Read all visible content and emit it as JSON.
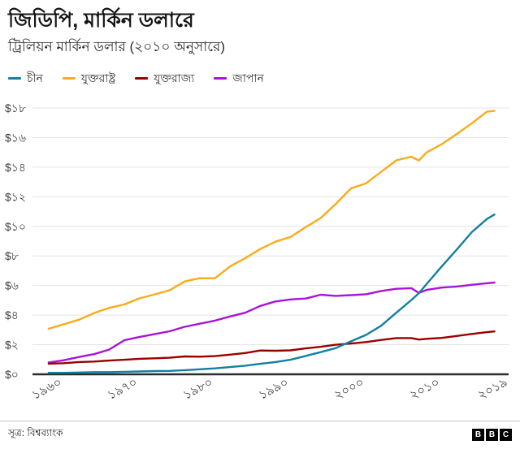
{
  "header": {
    "title": "জিডিপি, মার্কিন ডলারে",
    "subtitle": "ট্রিলিয়ন মার্কিন ডলার (২০১০ অনুসারে)"
  },
  "legend": {
    "items": [
      {
        "key": "china",
        "label": "চীন",
        "color": "#1380A1"
      },
      {
        "key": "usa",
        "label": "যুক্তরাষ্ট্র",
        "color": "#FAAB18"
      },
      {
        "key": "uk",
        "label": "যুক্তরাজ্য",
        "color": "#990000"
      },
      {
        "key": "japan",
        "label": "জাপান",
        "color": "#A913DB"
      }
    ]
  },
  "footer": {
    "source": "সূত্র: বিশ্বব্যাংক",
    "logo_letters": [
      "B",
      "B",
      "C"
    ]
  },
  "chart_data": {
    "type": "line",
    "title": "জিডিপি, মার্কিন ডলারে",
    "subtitle": "ট্রিলিয়ন মার্কিন ডলার (২০১০ অনুসারে)",
    "xlabel": "",
    "ylabel": "",
    "grid": true,
    "legend_position": "top",
    "xlim": [
      1958.5,
      2019.8
    ],
    "ylim": [
      0,
      18
    ],
    "x": [
      1960,
      1962,
      1964,
      1966,
      1968,
      1970,
      1972,
      1974,
      1976,
      1978,
      1980,
      1982,
      1984,
      1986,
      1988,
      1990,
      1992,
      1994,
      1996,
      1998,
      2000,
      2002,
      2004,
      2006,
      2008,
      2009,
      2010,
      2012,
      2014,
      2016,
      2018,
      2019
    ],
    "series": [
      {
        "key": "china",
        "name": "চীন",
        "color": "#1380A1",
        "values": [
          0.1,
          0.1,
          0.12,
          0.15,
          0.15,
          0.17,
          0.19,
          0.22,
          0.23,
          0.28,
          0.34,
          0.4,
          0.49,
          0.58,
          0.71,
          0.83,
          0.98,
          1.24,
          1.5,
          1.77,
          2.23,
          2.66,
          3.28,
          4.16,
          5.02,
          5.49,
          6.09,
          7.28,
          8.43,
          9.61,
          10.5,
          10.8
        ]
      },
      {
        "key": "usa",
        "name": "যুক্তরাষ্ট্র",
        "color": "#FAAB18",
        "values": [
          3.08,
          3.38,
          3.69,
          4.14,
          4.49,
          4.72,
          5.13,
          5.4,
          5.68,
          6.27,
          6.5,
          6.49,
          7.29,
          7.84,
          8.47,
          8.96,
          9.28,
          9.94,
          10.56,
          11.52,
          12.56,
          12.91,
          13.68,
          14.46,
          14.71,
          14.45,
          14.99,
          15.54,
          16.24,
          16.97,
          17.75,
          17.8
        ]
      },
      {
        "key": "uk",
        "name": "যুক্তরাজ্য",
        "color": "#990000",
        "values": [
          0.72,
          0.75,
          0.83,
          0.86,
          0.93,
          0.98,
          1.05,
          1.08,
          1.12,
          1.21,
          1.19,
          1.23,
          1.33,
          1.44,
          1.61,
          1.59,
          1.62,
          1.75,
          1.86,
          2.0,
          2.08,
          2.18,
          2.32,
          2.45,
          2.45,
          2.35,
          2.4,
          2.46,
          2.59,
          2.73,
          2.85,
          2.9
        ]
      },
      {
        "key": "japan",
        "name": "জাপান",
        "color": "#A913DB",
        "values": [
          0.8,
          0.95,
          1.17,
          1.36,
          1.67,
          2.3,
          2.52,
          2.71,
          2.91,
          3.21,
          3.42,
          3.63,
          3.91,
          4.16,
          4.62,
          4.92,
          5.06,
          5.12,
          5.38,
          5.3,
          5.35,
          5.41,
          5.63,
          5.78,
          5.82,
          5.5,
          5.7,
          5.86,
          5.93,
          6.05,
          6.16,
          6.2
        ]
      }
    ],
    "yticks": [
      {
        "v": 0,
        "label": "$০"
      },
      {
        "v": 2,
        "label": "$২"
      },
      {
        "v": 4,
        "label": "$৪"
      },
      {
        "v": 6,
        "label": "$৬"
      },
      {
        "v": 8,
        "label": "$৮"
      },
      {
        "v": 10,
        "label": "$১০"
      },
      {
        "v": 12,
        "label": "$১২"
      },
      {
        "v": 14,
        "label": "$১৪"
      },
      {
        "v": 16,
        "label": "$১৬"
      },
      {
        "v": 18,
        "label": "$১৮"
      }
    ],
    "xticks": [
      {
        "v": 1960,
        "label": "১৯৬০"
      },
      {
        "v": 1970,
        "label": "১৯৭০"
      },
      {
        "v": 1980,
        "label": "১৯৮০"
      },
      {
        "v": 1990,
        "label": "১৯৯০"
      },
      {
        "v": 2000,
        "label": "২০০০"
      },
      {
        "v": 2010,
        "label": "২০১০"
      },
      {
        "v": 2019,
        "label": "২০১৯"
      }
    ]
  }
}
